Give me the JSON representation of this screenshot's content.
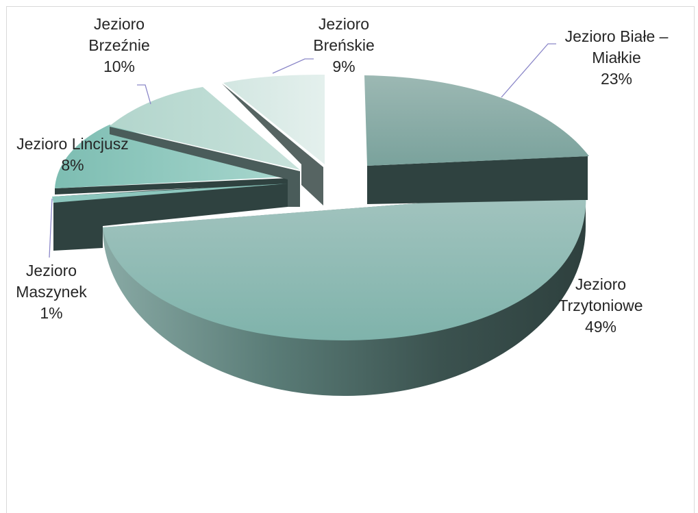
{
  "chart_data": {
    "type": "pie",
    "title": "",
    "slices": [
      {
        "label_lines": [
          "Jezioro Białe –",
          "Miałkie"
        ],
        "percent_label": "23%",
        "value": 23,
        "color": "#8fb2ac"
      },
      {
        "label_lines": [
          "Jezioro",
          "Trzytoniowe"
        ],
        "percent_label": "49%",
        "value": 49,
        "color": "#8fbcb5"
      },
      {
        "label_lines": [
          "Jezioro",
          "Maszynek"
        ],
        "percent_label": "1%",
        "value": 1,
        "color": "#8cc6bd"
      },
      {
        "label_lines": [
          "Jezioro Lincjusz"
        ],
        "percent_label": "8%",
        "value": 8,
        "color": "#9ed0c6"
      },
      {
        "label_lines": [
          "Jezioro",
          "Brzeźnie"
        ],
        "percent_label": "10%",
        "value": 10,
        "color": "#bcdbd3"
      },
      {
        "label_lines": [
          "Jezioro",
          "Breńskie"
        ],
        "percent_label": "9%",
        "value": 9,
        "color": "#dbebe7"
      }
    ],
    "style": "3d-exploded",
    "legend": "none",
    "colors": {
      "side_dark": "#2f4240",
      "leader_line": "#8a86c8"
    }
  }
}
